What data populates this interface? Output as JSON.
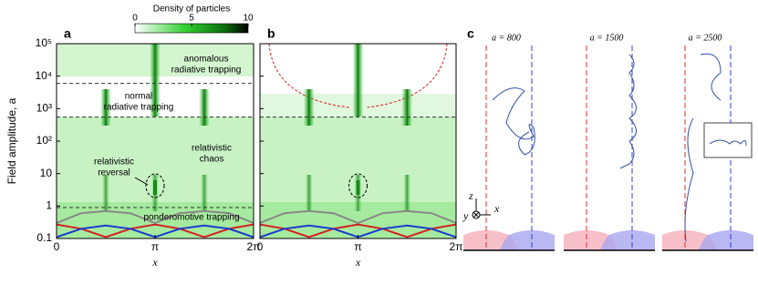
{
  "chart_data": [
    {
      "type": "heatmap",
      "panel_label": "a",
      "ylabel": "Field amplitude, a",
      "xlabel": "x",
      "log_y": true,
      "ylim": [
        0.1,
        100000
      ],
      "yticks": [
        0.1,
        1,
        10,
        {
          "value": 100,
          "label": "10²"
        },
        {
          "value": 1000,
          "label": "10³"
        },
        {
          "value": 10000,
          "label": "10⁴"
        },
        {
          "value": 100000,
          "label": "10⁵"
        }
      ],
      "xlim": [
        0,
        6.2832
      ],
      "xticks": [
        0,
        {
          "value": 3.1416,
          "label": "π"
        },
        {
          "value": 6.2832,
          "label": "2π"
        }
      ],
      "dashed_levels": [
        0.9,
        550,
        6000
      ],
      "colorbar": {
        "label": "Density of particles",
        "lim": [
          0,
          10
        ],
        "ticks": [
          0,
          5,
          10
        ]
      },
      "annotations": [
        {
          "lines": [
            "anomalous",
            "radiative trapping"
          ]
        },
        {
          "lines": [
            "normal",
            "radiative trapping"
          ]
        },
        {
          "lines": [
            "relativistic",
            "chaos"
          ]
        },
        {
          "lines": [
            "relativistic",
            "reversal"
          ]
        },
        {
          "lines": [
            "ponderomotive trapping"
          ]
        }
      ],
      "curves": [
        {
          "color": "#888888",
          "x": [
            0,
            0.7854,
            1.5708,
            2.3562,
            3.1416,
            3.927,
            4.7124,
            5.4978,
            6.2832
          ],
          "values": [
            0.3,
            0.6,
            0.7,
            0.6,
            0.3,
            0.6,
            0.7,
            0.6,
            0.3
          ]
        },
        {
          "color": "#d42020",
          "x": [
            0,
            0.7854,
            1.5708,
            2.3562,
            3.1416,
            3.927,
            4.7124,
            5.4978,
            6.2832
          ],
          "values": [
            0.27,
            0.2,
            0.11,
            0.2,
            0.27,
            0.2,
            0.11,
            0.2,
            0.27
          ]
        },
        {
          "color": "#1a3ad0",
          "x": [
            0,
            0.7854,
            1.5708,
            2.3562,
            3.1416,
            3.927,
            4.7124,
            5.4978,
            6.2832
          ],
          "values": [
            0.11,
            0.2,
            0.25,
            0.2,
            0.11,
            0.2,
            0.25,
            0.2,
            0.11
          ]
        }
      ]
    },
    {
      "type": "heatmap",
      "panel_label": "b",
      "xlabel": "x",
      "log_y": true,
      "ylim": [
        0.1,
        100000
      ],
      "xlim": [
        0,
        6.2832
      ],
      "xticks": [
        0,
        {
          "value": 3.1416,
          "label": "π"
        },
        {
          "value": 6.2832,
          "label": "2π"
        }
      ],
      "dashed_levels": [
        550
      ],
      "curves": [
        {
          "color": "#888888",
          "x": [
            0,
            0.7854,
            1.5708,
            2.3562,
            3.1416,
            3.927,
            4.7124,
            5.4978,
            6.2832
          ],
          "values": [
            0.3,
            0.6,
            0.7,
            0.6,
            0.3,
            0.6,
            0.7,
            0.6,
            0.3
          ]
        },
        {
          "color": "#d42020",
          "x": [
            0,
            0.7854,
            1.5708,
            2.3562,
            3.1416,
            3.927,
            4.7124,
            5.4978,
            6.2832
          ],
          "values": [
            0.27,
            0.2,
            0.11,
            0.2,
            0.27,
            0.2,
            0.11,
            0.2,
            0.27
          ]
        },
        {
          "color": "#1a3ad0",
          "x": [
            0,
            0.7854,
            1.5708,
            2.3562,
            3.1416,
            3.927,
            4.7124,
            5.4978,
            6.2832
          ],
          "values": [
            0.11,
            0.2,
            0.25,
            0.2,
            0.11,
            0.2,
            0.25,
            0.2,
            0.11
          ]
        }
      ]
    },
    {
      "type": "trajectory",
      "panel_label": "c",
      "panels": [
        "a = 800",
        "a = 1500",
        "a = 2500"
      ],
      "axis_labels": [
        "z",
        "x",
        "y"
      ]
    }
  ]
}
